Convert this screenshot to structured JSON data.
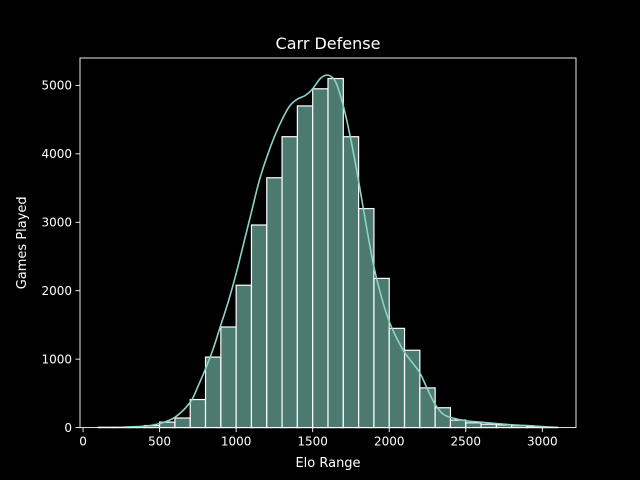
{
  "chart_data": {
    "type": "bar",
    "title": "Carr Defense",
    "xlabel": "Elo Range",
    "ylabel": "Games Played",
    "xlim": [
      -20,
      3220
    ],
    "ylim": [
      0,
      5400
    ],
    "xticks": [
      0,
      500,
      1000,
      1500,
      2000,
      2500,
      3000
    ],
    "yticks": [
      0,
      1000,
      2000,
      3000,
      4000,
      5000
    ],
    "bin_edges": [
      100,
      200,
      300,
      400,
      500,
      600,
      700,
      800,
      900,
      1000,
      1100,
      1200,
      1300,
      1400,
      1500,
      1600,
      1700,
      1800,
      1900,
      2000,
      2100,
      2200,
      2300,
      2400,
      2500,
      2600,
      2700,
      2800,
      2900,
      3000,
      3100
    ],
    "values": [
      5,
      5,
      10,
      30,
      80,
      140,
      410,
      1030,
      1470,
      2080,
      2960,
      3650,
      4250,
      4700,
      4950,
      5100,
      4250,
      3200,
      2180,
      1450,
      1130,
      580,
      290,
      110,
      70,
      50,
      40,
      30,
      15,
      5
    ],
    "kde": {
      "x": [
        250,
        400,
        500,
        600,
        700,
        750,
        800,
        850,
        900,
        950,
        1000,
        1050,
        1100,
        1150,
        1200,
        1250,
        1300,
        1350,
        1400,
        1450,
        1500,
        1550,
        1600,
        1650,
        1700,
        1750,
        1800,
        1850,
        1900,
        1950,
        2000,
        2050,
        2100,
        2150,
        2200,
        2250,
        2300,
        2350,
        2400,
        2500,
        2600,
        2700,
        2800,
        2900,
        3000,
        3080
      ],
      "y": [
        5,
        20,
        60,
        150,
        370,
        600,
        860,
        1150,
        1500,
        1850,
        2250,
        2700,
        3150,
        3600,
        3950,
        4250,
        4500,
        4700,
        4800,
        4850,
        4950,
        5100,
        5150,
        5050,
        4700,
        4200,
        3600,
        2950,
        2350,
        1900,
        1550,
        1300,
        1100,
        950,
        800,
        560,
        340,
        200,
        150,
        100,
        80,
        60,
        40,
        30,
        15,
        5
      ]
    },
    "colors": {
      "background": "#000000",
      "bar_fill": "#4d7a70",
      "bar_edge": "#ffffff",
      "kde_line": "#8dd3c7",
      "text": "#ffffff"
    },
    "grid": false,
    "legend": "none"
  }
}
